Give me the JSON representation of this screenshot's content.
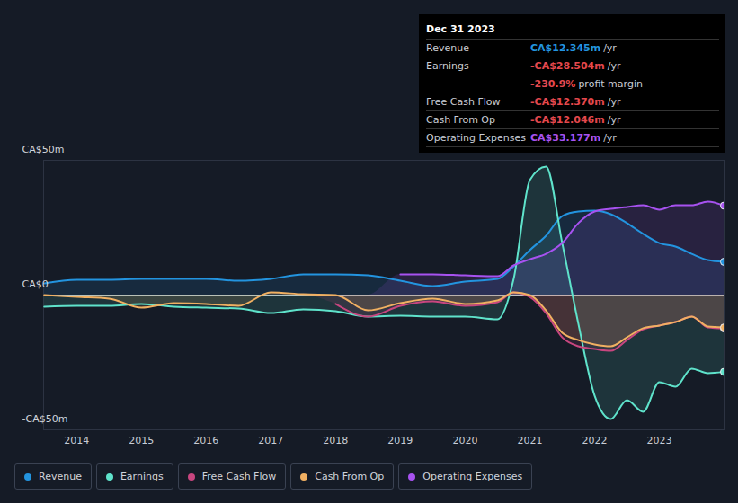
{
  "chart_data": {
    "type": "line",
    "x": [
      2013.5,
      2014,
      2014.5,
      2015,
      2015.5,
      2016,
      2016.5,
      2017,
      2017.5,
      2018,
      2018.5,
      2019,
      2019.5,
      2020,
      2020.5,
      2020.75,
      2021,
      2021.25,
      2021.5,
      2021.75,
      2022,
      2022.25,
      2022.5,
      2022.75,
      2023,
      2023.25,
      2023.5,
      2023.75,
      2024
    ],
    "xlim": [
      2013.49,
      2024
    ],
    "xticks": [
      2014,
      2015,
      2016,
      2017,
      2018,
      2019,
      2020,
      2021,
      2022,
      2023
    ],
    "ylim": [
      -50,
      50
    ],
    "yticks": [
      {
        "value": -50,
        "label": "-CA$50m"
      },
      {
        "value": 0,
        "label": "CA$0"
      },
      {
        "value": 50,
        "label": "CA$50m"
      }
    ],
    "grid": true,
    "legend": "bottom",
    "series": [
      {
        "name": "Revenue",
        "color": "#2394df",
        "values": [
          4.3,
          5.7,
          5.7,
          6,
          6,
          6,
          5.3,
          6,
          7.7,
          7.7,
          7.3,
          5.3,
          3.3,
          5,
          6,
          10.7,
          16.7,
          22,
          29.3,
          31,
          31.3,
          30,
          26.7,
          22.7,
          19.3,
          18,
          15.3,
          13,
          12.345
        ]
      },
      {
        "name": "Earnings",
        "color": "#5fe3cb",
        "values": [
          -4.3,
          -4,
          -4,
          -3.3,
          -4.3,
          -4.7,
          -5,
          -6.7,
          -5.3,
          -6,
          -8,
          -7.7,
          -8,
          -8,
          -9,
          6,
          42.7,
          47.7,
          19.3,
          -10.7,
          -37.3,
          -46,
          -39,
          -43.3,
          -32.3,
          -34,
          -27.3,
          -29,
          -28.504
        ]
      },
      {
        "name": "Free Cash Flow",
        "color": "#c8467f",
        "values": [
          null,
          null,
          null,
          null,
          null,
          null,
          null,
          null,
          null,
          -3.3,
          -8,
          -4,
          -2.3,
          -4,
          -2.7,
          1,
          -0.7,
          -6.7,
          -15.7,
          -19,
          -20,
          -20.7,
          -16.7,
          -12.7,
          -11.3,
          -10,
          -8,
          -12,
          -12.37
        ]
      },
      {
        "name": "Cash From Op",
        "color": "#f1b062",
        "values": [
          0,
          -0.7,
          -1.3,
          -4.7,
          -3,
          -3.3,
          -4,
          1,
          0.3,
          0,
          -5.7,
          -3,
          -1.3,
          -3.3,
          -2,
          1,
          0,
          -5.7,
          -14,
          -16.7,
          -18.3,
          -19,
          -15.7,
          -12.3,
          -11.3,
          -10,
          -8,
          -11.7,
          -12.046
        ]
      },
      {
        "name": "Operating Expenses",
        "color": "#a752f0",
        "values": [
          null,
          null,
          null,
          null,
          null,
          null,
          null,
          null,
          null,
          null,
          null,
          7.7,
          7.7,
          7.3,
          7,
          11,
          13.3,
          15.3,
          19.3,
          26.7,
          31,
          32,
          32.7,
          33.3,
          31.7,
          33.3,
          33.3,
          34.7,
          33.177
        ]
      }
    ],
    "tooltip": {
      "title": "Dec 31 2023",
      "rows": [
        {
          "label": "Revenue",
          "value_label": "CA$12.345m",
          "suffix": "/yr",
          "color": "#2394df"
        },
        {
          "label": "Earnings",
          "value_label": "-CA$28.504m",
          "suffix": "/yr",
          "color": "#e5484d"
        },
        {
          "label": "Free Cash Flow",
          "value_label": "-CA$12.370m",
          "suffix": "/yr",
          "color": "#e5484d"
        },
        {
          "label": "Cash From Op",
          "value_label": "-CA$12.046m",
          "suffix": "/yr",
          "color": "#e5484d"
        },
        {
          "label": "Operating Expenses",
          "value_label": "CA$33.177m",
          "suffix": "/yr",
          "color": "#a752f0"
        }
      ],
      "margin": {
        "value_label": "-230.9%",
        "text": "profit margin",
        "color": "#e5484d",
        "after_row": "Earnings"
      }
    }
  }
}
